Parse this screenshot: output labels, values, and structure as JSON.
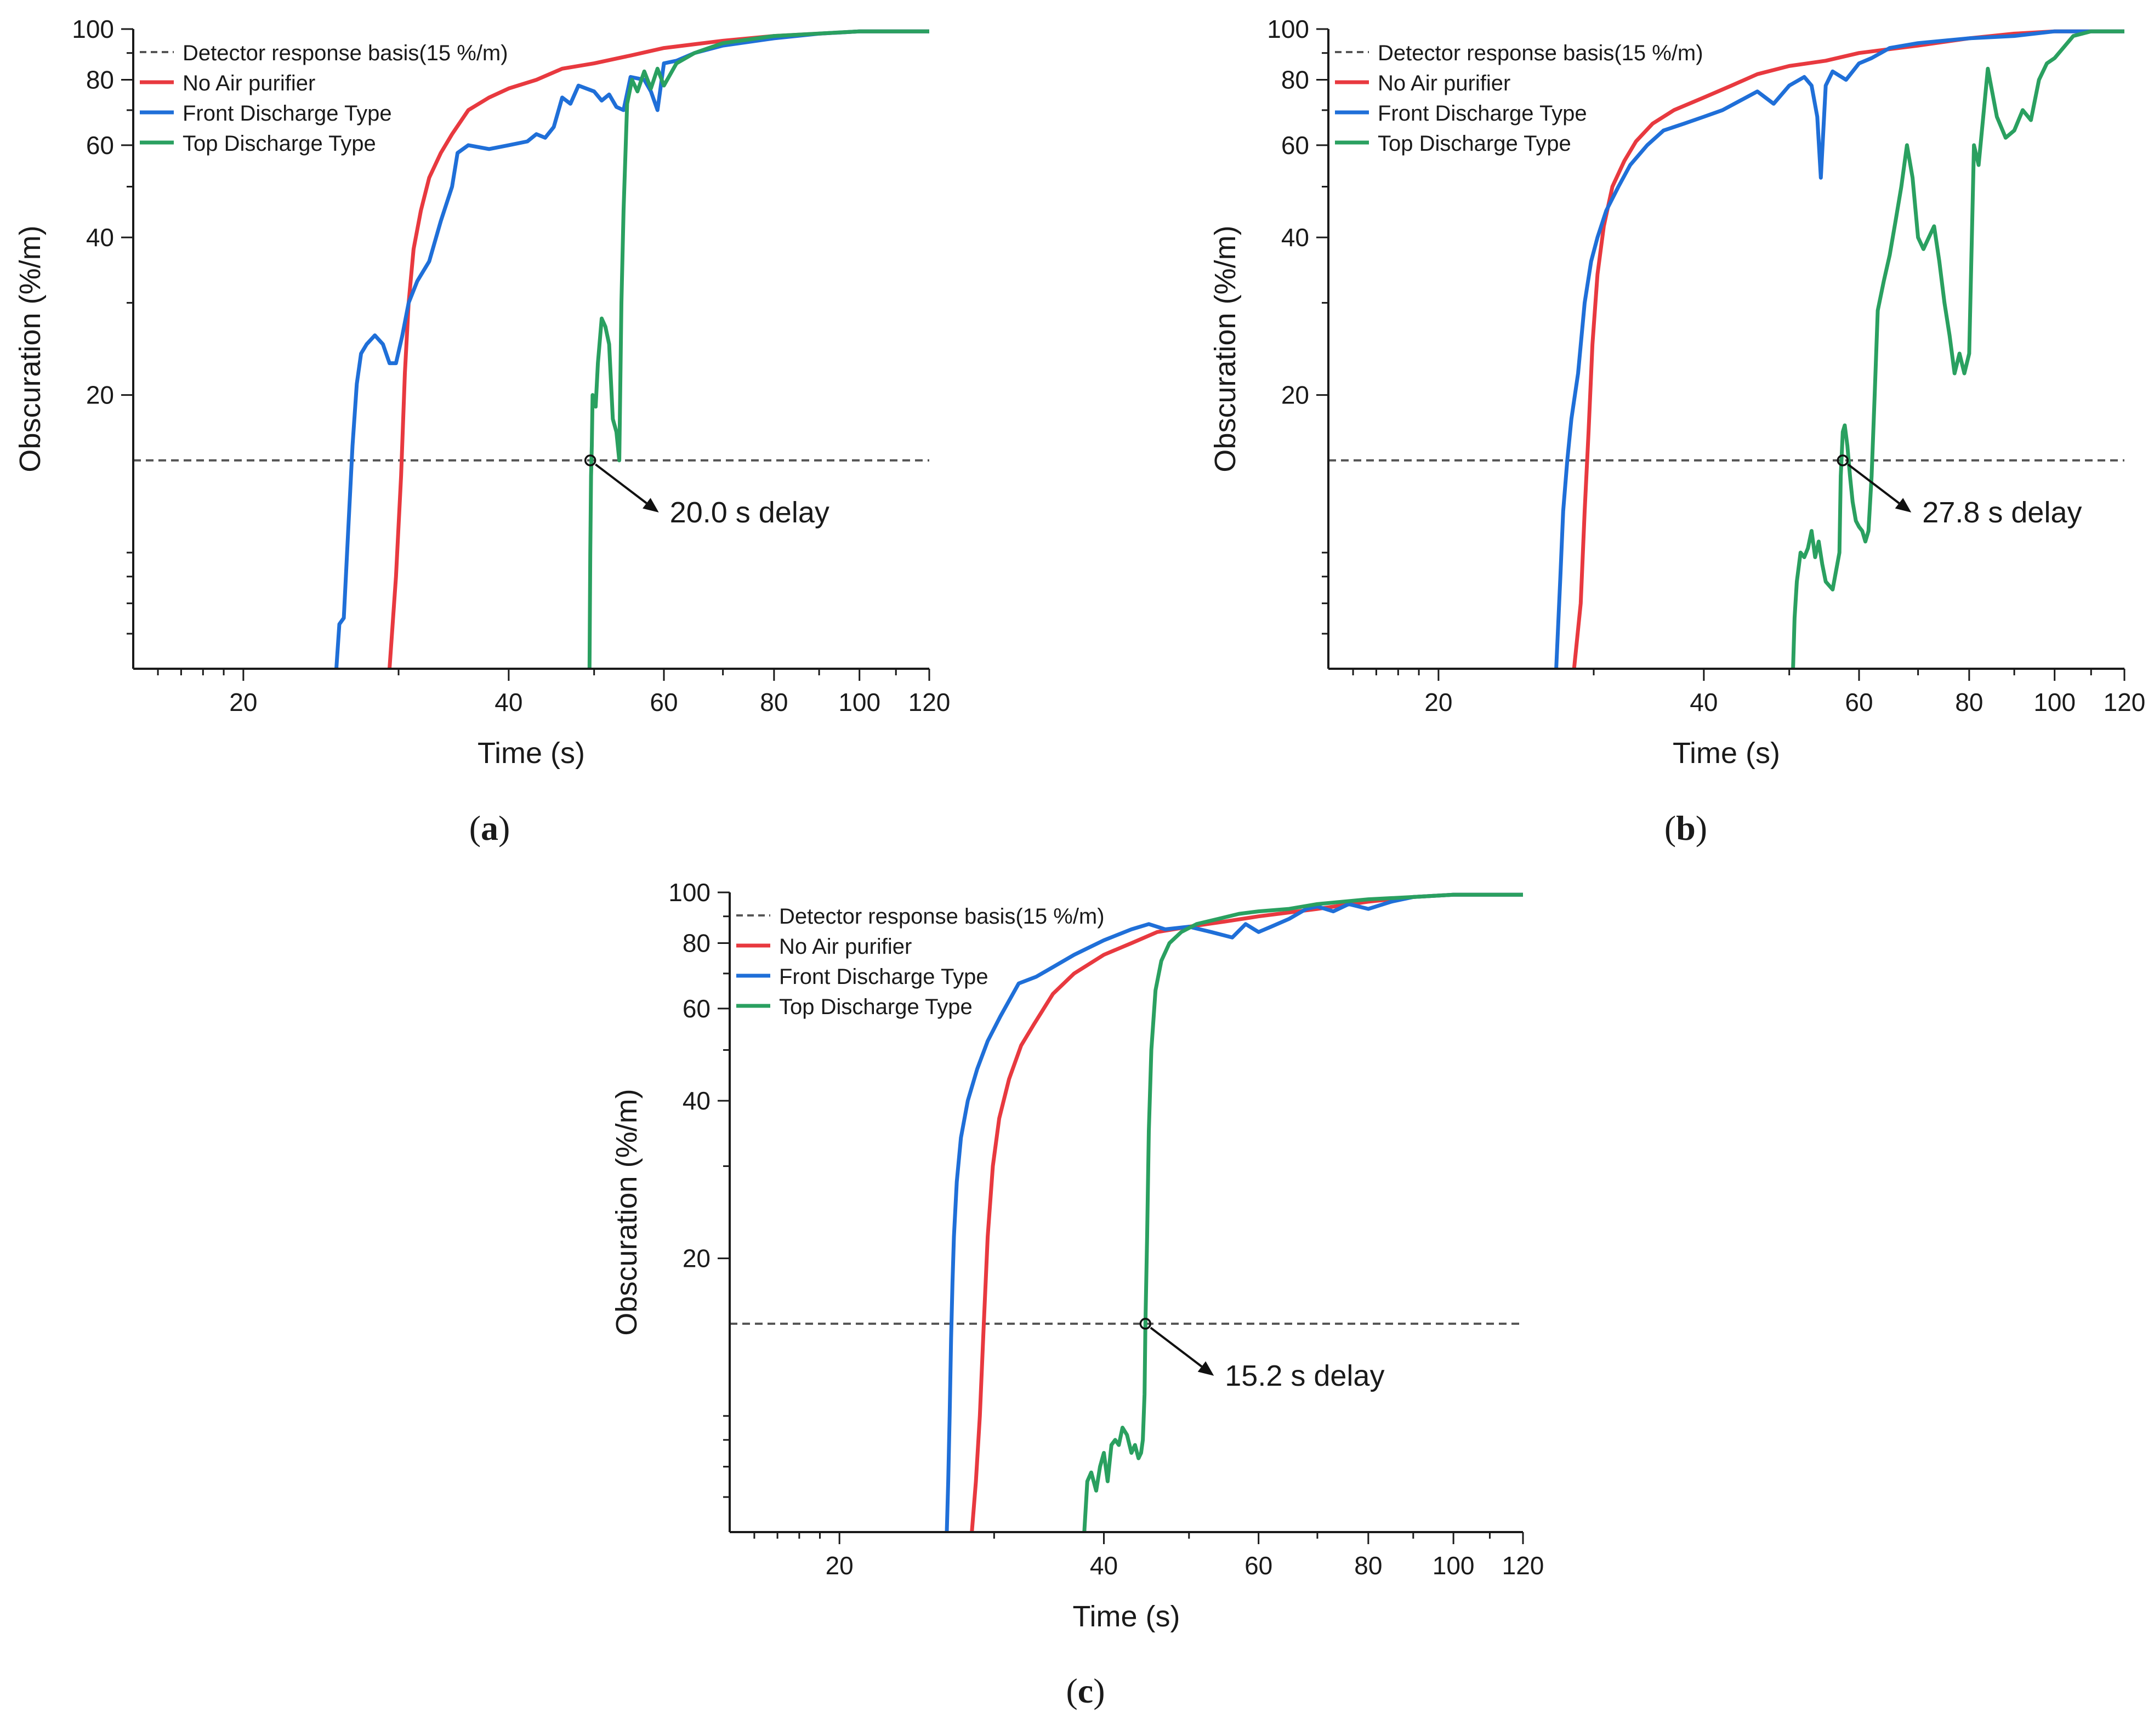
{
  "figure": {
    "captions": [
      "(a)",
      "(b)",
      "(c)"
    ]
  },
  "colors": {
    "no_air_purifier": "#e8393f",
    "front_discharge": "#1f6fd8",
    "top_discharge": "#2aa060",
    "reference": "#555555",
    "axis": "#1a1a1a"
  },
  "chart_data": [
    {
      "panel": "(a)",
      "caption": "(a)",
      "type": "line",
      "xlabel": "Time (s)",
      "ylabel": "Obscuration (%/m)",
      "xscale": "log",
      "yscale": "log",
      "xlim": [
        15,
        120
      ],
      "ylim": [
        6,
        100
      ],
      "xticks": [
        20,
        40,
        60,
        80,
        100,
        120
      ],
      "yticks": [
        20,
        40,
        60,
        80,
        100
      ],
      "legend_position": "top-left",
      "reference_line": {
        "name": "Detector response basis(15 %/m)",
        "y": 15
      },
      "annotation": {
        "text": "20.0 s delay",
        "x": 49.5,
        "y": 15
      },
      "series": [
        {
          "name": "No Air purifier",
          "color_key": "no_air_purifier",
          "x": [
            29.3,
            29.8,
            30.2,
            30.5,
            30.8,
            31.2,
            31.8,
            32.5,
            33.5,
            34.5,
            36,
            38,
            40,
            43,
            46,
            50,
            55,
            60,
            70,
            80,
            90,
            100,
            120
          ],
          "y": [
            6,
            9,
            14,
            22,
            30,
            38,
            45,
            52,
            58,
            63,
            70,
            74,
            77,
            80,
            84,
            86,
            89,
            92,
            95,
            97,
            98,
            99,
            99
          ]
        },
        {
          "name": "Front Discharge Type",
          "color_key": "front_discharge",
          "x": [
            25.5,
            25.7,
            26.0,
            26.3,
            26.6,
            26.9,
            27.2,
            27.6,
            28.2,
            28.8,
            29.3,
            29.8,
            30.3,
            30.8,
            31.5,
            32.5,
            33.5,
            34.5,
            35,
            36,
            38,
            40,
            42,
            43,
            44,
            45,
            46,
            47,
            48,
            50,
            51,
            52,
            53,
            54,
            55,
            57,
            58,
            59,
            60,
            62,
            65,
            70,
            80,
            90,
            100,
            120
          ],
          "y": [
            6,
            7.3,
            7.5,
            11,
            16,
            21,
            24,
            25,
            26,
            25,
            23,
            23,
            26,
            30,
            33,
            36,
            43,
            50,
            58,
            60,
            59,
            60,
            61,
            63,
            62,
            65,
            74,
            72,
            78,
            76,
            73,
            75,
            71,
            70,
            81,
            80,
            76,
            70,
            86,
            87,
            90,
            93,
            96,
            98,
            99,
            99
          ]
        },
        {
          "name": "Top Discharge Type",
          "color_key": "top_discharge",
          "x": [
            49.4,
            49.5,
            49.6,
            49.7,
            49.8,
            50.2,
            50.5,
            51,
            51.5,
            52,
            52.5,
            53,
            53.4,
            53.7,
            54,
            54.5,
            55.2,
            56,
            57,
            58,
            59,
            60,
            62,
            65,
            70,
            80,
            100,
            120
          ],
          "y": [
            6,
            10,
            14,
            16,
            20,
            19,
            23,
            28,
            27,
            25,
            18,
            17,
            15,
            30,
            45,
            72,
            80,
            76,
            83,
            77,
            84,
            78,
            86,
            90,
            94,
            97,
            99,
            99
          ]
        }
      ]
    },
    {
      "panel": "(b)",
      "caption": "(b)",
      "type": "line",
      "xlabel": "Time (s)",
      "ylabel": "Obscuration (%/m)",
      "xscale": "log",
      "yscale": "log",
      "xlim": [
        15,
        120
      ],
      "ylim": [
        6,
        100
      ],
      "xticks": [
        20,
        40,
        60,
        80,
        100,
        120
      ],
      "yticks": [
        20,
        40,
        60,
        80,
        100
      ],
      "legend_position": "top-left",
      "reference_line": {
        "name": "Detector response basis(15 %/m)",
        "y": 15
      },
      "annotation": {
        "text": "27.8 s delay",
        "x": 57.5,
        "y": 15
      },
      "series": [
        {
          "name": "No Air purifier",
          "color_key": "no_air_purifier",
          "x": [
            28.5,
            29,
            29.3,
            29.6,
            29.9,
            30.3,
            30.8,
            31.5,
            32.5,
            33.5,
            35,
            37,
            40,
            43,
            46,
            50,
            55,
            60,
            70,
            80,
            90,
            100,
            120
          ],
          "y": [
            6,
            8,
            12,
            17,
            25,
            34,
            42,
            50,
            56,
            61,
            66,
            70,
            74,
            78,
            82,
            85,
            87,
            90,
            93,
            96,
            98,
            99,
            99
          ]
        },
        {
          "name": "Front Discharge Type",
          "color_key": "front_discharge",
          "x": [
            27.2,
            27.5,
            27.7,
            28.0,
            28.3,
            28.8,
            29.3,
            29.8,
            30.3,
            31,
            32,
            33,
            34.5,
            36,
            38,
            40,
            42,
            44,
            46,
            48,
            50,
            52,
            53,
            53.8,
            54.3,
            55,
            56,
            58,
            60,
            62,
            65,
            70,
            80,
            90,
            100,
            120
          ],
          "y": [
            6,
            9,
            12,
            15,
            18,
            22,
            30,
            36,
            40,
            45,
            50,
            55,
            60,
            64,
            66,
            68,
            70,
            73,
            76,
            72,
            78,
            81,
            78,
            68,
            52,
            78,
            83,
            80,
            86,
            88,
            92,
            94,
            96,
            97,
            99,
            99
          ]
        },
        {
          "name": "Top Discharge Type",
          "color_key": "top_discharge",
          "x": [
            50.5,
            50.7,
            51,
            51.5,
            52,
            52.5,
            53,
            53.5,
            54,
            54.5,
            55,
            56,
            57,
            57.2,
            57.5,
            57.8,
            58.2,
            58.6,
            59,
            59.5,
            60,
            60.5,
            61,
            61.5,
            62,
            62.5,
            63,
            64,
            65,
            66,
            67,
            68,
            69,
            70,
            71,
            72,
            73,
            74,
            75,
            76,
            77,
            78,
            79,
            80,
            81,
            82,
            84,
            86,
            88,
            90,
            92,
            94,
            96,
            98,
            100,
            105,
            110,
            120
          ],
          "y": [
            6,
            7.5,
            8.8,
            10,
            9.8,
            10.2,
            11,
            9.8,
            10.5,
            9.5,
            8.8,
            8.5,
            10,
            14,
            17,
            17.5,
            16,
            14,
            12.5,
            11.5,
            11.2,
            11,
            10.5,
            11,
            14,
            20,
            29,
            33,
            37,
            43,
            50,
            60,
            52,
            40,
            38,
            40,
            42,
            36,
            30,
            26,
            22,
            24,
            22,
            24,
            60,
            55,
            84,
            68,
            62,
            64,
            70,
            67,
            80,
            86,
            88,
            97,
            99,
            99
          ]
        }
      ]
    },
    {
      "panel": "(c)",
      "caption": "(c)",
      "type": "line",
      "xlabel": "Time (s)",
      "ylabel": "Obscuration (%/m)",
      "xscale": "log",
      "yscale": "log",
      "xlim": [
        15,
        120
      ],
      "ylim": [
        6,
        100
      ],
      "xticks": [
        20,
        40,
        60,
        80,
        100,
        120
      ],
      "yticks": [
        20,
        40,
        60,
        80,
        100
      ],
      "legend_position": "top-left",
      "reference_line": {
        "name": "Detector response basis(15 %/m)",
        "y": 15
      },
      "annotation": {
        "text": "15.2 s delay",
        "x": 44.6,
        "y": 15
      },
      "series": [
        {
          "name": "No Air purifier",
          "color_key": "no_air_purifier",
          "x": [
            28.3,
            28.6,
            28.9,
            29.2,
            29.5,
            29.9,
            30.4,
            31.2,
            32.2,
            33.3,
            35,
            37,
            40,
            43,
            46,
            50,
            55,
            60,
            70,
            80,
            90,
            100,
            120
          ],
          "y": [
            6,
            7.5,
            10,
            15,
            22,
            30,
            37,
            44,
            51,
            56,
            64,
            70,
            76,
            80,
            84,
            86,
            88,
            90,
            93,
            96,
            98,
            99,
            99
          ]
        },
        {
          "name": "Front Discharge Type",
          "color_key": "front_discharge",
          "x": [
            26.5,
            26.6,
            26.7,
            26.8,
            26.9,
            27.0,
            27.2,
            27.5,
            28,
            28.7,
            29.5,
            30.5,
            32,
            33.5,
            35,
            37,
            40,
            43,
            45,
            47,
            50,
            53,
            56,
            58,
            60,
            62,
            65,
            68,
            70,
            73,
            76,
            80,
            85,
            90,
            100,
            120
          ],
          "y": [
            6,
            7.5,
            10,
            14,
            18,
            22,
            28,
            34,
            40,
            46,
            52,
            58,
            67,
            69,
            72,
            76,
            81,
            85,
            87,
            85,
            86,
            84,
            82,
            87,
            84,
            86,
            89,
            93,
            94,
            92,
            95,
            93,
            96,
            98,
            99,
            99
          ]
        },
        {
          "name": "Top Discharge Type",
          "color_key": "top_discharge",
          "x": [
            38,
            38.3,
            38.7,
            39.2,
            39.6,
            40.0,
            40.4,
            40.8,
            41.2,
            41.6,
            42.0,
            42.5,
            43.0,
            43.4,
            43.8,
            44.1,
            44.3,
            44.5,
            44.6,
            44.8,
            45.0,
            45.3,
            45.8,
            46.5,
            47.5,
            49,
            51,
            54,
            57,
            60,
            65,
            70,
            80,
            90,
            100,
            120
          ],
          "y": [
            6,
            7.5,
            7.8,
            7.2,
            8.0,
            8.5,
            7.5,
            8.8,
            9.0,
            8.8,
            9.5,
            9.2,
            8.5,
            8.8,
            8.3,
            8.5,
            9.0,
            11,
            15,
            22,
            35,
            50,
            65,
            74,
            80,
            84,
            87,
            89,
            91,
            92,
            93,
            95,
            97,
            98,
            99,
            99
          ]
        }
      ]
    }
  ]
}
